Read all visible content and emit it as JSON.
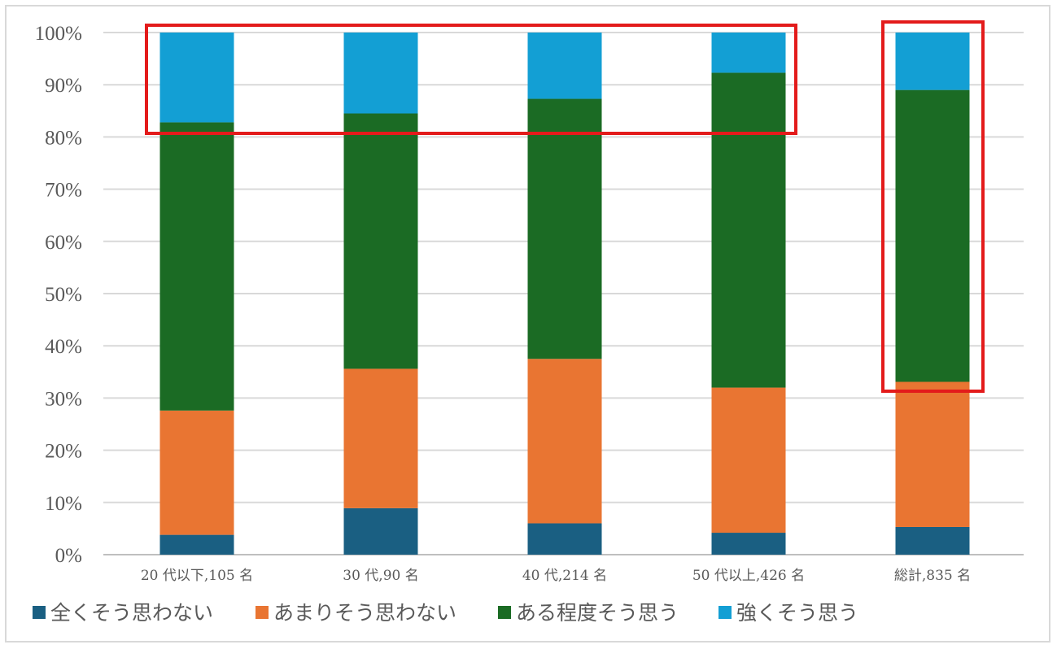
{
  "chart_data": {
    "type": "bar",
    "stacked": true,
    "percent": true,
    "categories": [
      "20 代以下,105 名",
      "30 代,90 名",
      "40 代,214 名",
      "50 代以上,426 名",
      "総計,835 名"
    ],
    "series": [
      {
        "name": "全くそう思わない",
        "color": "#1a5f82",
        "values": [
          3.8,
          8.9,
          6.0,
          4.2,
          5.3
        ]
      },
      {
        "name": "あまりそう思わない",
        "color": "#e97532",
        "values": [
          23.8,
          26.7,
          31.5,
          27.8,
          27.8
        ]
      },
      {
        "name": "ある程度そう思う",
        "color": "#1b6b24",
        "values": [
          55.2,
          48.9,
          49.8,
          60.3,
          55.9
        ]
      },
      {
        "name": "強くそう思う",
        "color": "#139fd4",
        "values": [
          17.2,
          15.5,
          12.7,
          7.7,
          11.0
        ]
      }
    ],
    "yticks": [
      "0%",
      "10%",
      "20%",
      "30%",
      "40%",
      "50%",
      "60%",
      "70%",
      "80%",
      "90%",
      "100%"
    ],
    "ylim": [
      0,
      100
    ],
    "grid": true,
    "legend": "bottom-left",
    "highlight_color": "#e31b1b"
  }
}
